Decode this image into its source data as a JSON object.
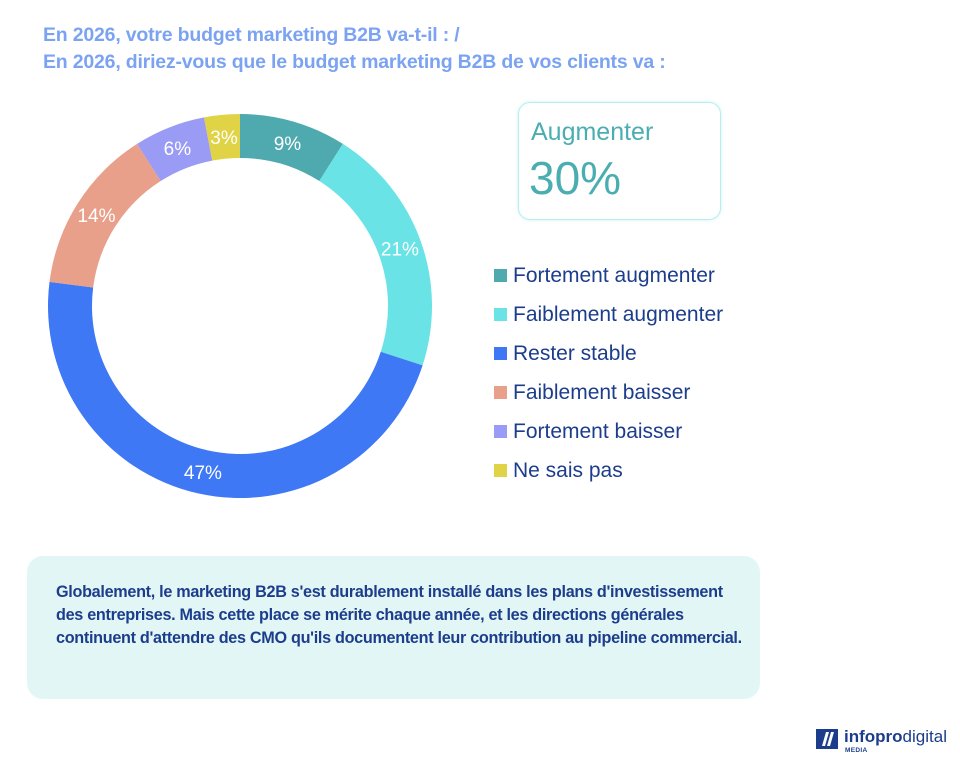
{
  "title": {
    "line1": "En 2026, votre budget marketing B2B va-t-il : /",
    "line2": "En 2026, diriez-vous que le budget marketing B2B de vos clients va :"
  },
  "kpi": {
    "label": "Augmenter",
    "value": "30%"
  },
  "chart_data": {
    "type": "pie",
    "subtype": "donut",
    "title": "En 2026, votre budget marketing B2B va-t-il : / En 2026, diriez-vous que le budget marketing B2B de vos clients va :",
    "start": "12 o'clock, clockwise",
    "legend_position": "right",
    "unit": "%",
    "slices": [
      {
        "label": "Fortement augmenter",
        "value": 9,
        "display": "9%",
        "color": "#4faaaf"
      },
      {
        "label": "Faiblement augmenter",
        "value": 21,
        "display": "21%",
        "color": "#69e3e6"
      },
      {
        "label": "Rester stable",
        "value": 47,
        "display": "47%",
        "color": "#3e78f5"
      },
      {
        "label": "Faiblement baisser",
        "value": 14,
        "display": "14%",
        "color": "#e8a08a"
      },
      {
        "label": "Fortement baisser",
        "value": 6,
        "display": "6%",
        "color": "#999bf5"
      },
      {
        "label": "Ne sais pas",
        "value": 3,
        "display": "3%",
        "color": "#e0d446"
      }
    ]
  },
  "legend": {
    "items": [
      {
        "label": "Fortement augmenter",
        "color": "#4faaaf"
      },
      {
        "label": "Faiblement augmenter",
        "color": "#69e3e6"
      },
      {
        "label": "Rester stable",
        "color": "#3e78f5"
      },
      {
        "label": "Faiblement baisser",
        "color": "#e8a08a"
      },
      {
        "label": "Fortement baisser",
        "color": "#999bf5"
      },
      {
        "label": "Ne sais pas",
        "color": "#e0d446"
      }
    ]
  },
  "note": {
    "text": "Globalement, le marketing B2B s'est durablement installé dans les plans d'investissement des entreprises. Mais cette place se mérite chaque année, et les directions générales continuent d'attendre des CMO qu'ils documentent leur contribution au pipeline commercial."
  },
  "logo": {
    "bold": "infopro",
    "light": "digital",
    "sub": "MEDIA"
  },
  "colors": {
    "title": "#7ba3f2",
    "kpi": "#4aaeb1",
    "text_dark": "#1c3d8c",
    "note_bg": "#e3f6f6"
  }
}
